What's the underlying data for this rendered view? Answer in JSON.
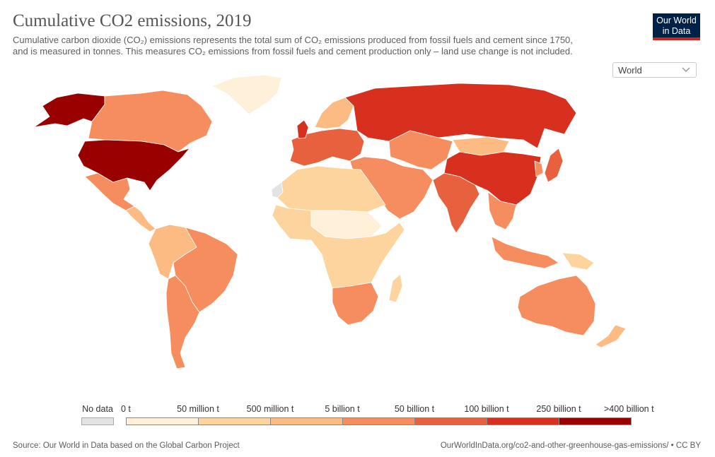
{
  "header": {
    "title": "Cumulative CO2 emissions, 2019",
    "subtitle_line1": "Cumulative carbon dioxide (CO₂) emissions represents the total sum of CO₂ emissions produced from fossil fuels and cement since 1750,",
    "subtitle_line2": "and is measured in tonnes. This measures CO₂ emissions from fossil fuels and cement production only – land use change is not included."
  },
  "logo": {
    "line1": "Our World",
    "line2": "in Data"
  },
  "region_selector": {
    "value": "World",
    "icon": "chevron-down-icon"
  },
  "legend": {
    "no_data_label": "No data",
    "no_data_color": "#e3e3e3",
    "bins": [
      {
        "label": "0 t",
        "color": "#fef0d9"
      },
      {
        "label": "50 million t",
        "color": "#fdd49e"
      },
      {
        "label": "500 million t",
        "color": "#fdbb84"
      },
      {
        "label": "5 billion t",
        "color": "#f58d5e"
      },
      {
        "label": "50 billion t",
        "color": "#e8613f"
      },
      {
        "label": "100 billion t",
        "color": "#d7301f"
      },
      {
        "label": "250 billion t",
        "color": "#990000"
      }
    ],
    "last_label": ">400 billion t"
  },
  "footer": {
    "source": "Source: Our World in Data based on the Global Carbon Project",
    "url": "OurWorldInData.org/co2-and-other-greenhouse-gas-emissions/ • CC BY"
  },
  "regions": [
    {
      "name": "alaska",
      "bin": 6
    },
    {
      "name": "canada",
      "bin": 3
    },
    {
      "name": "greenland",
      "bin": 0
    },
    {
      "name": "united-states",
      "bin": 6
    },
    {
      "name": "mexico",
      "bin": 3
    },
    {
      "name": "central-america",
      "bin": 2
    },
    {
      "name": "northern-south-america",
      "bin": 2
    },
    {
      "name": "brazil",
      "bin": 3
    },
    {
      "name": "southern-cone",
      "bin": 3
    },
    {
      "name": "western-europe",
      "bin": 4
    },
    {
      "name": "united-kingdom",
      "bin": 5
    },
    {
      "name": "scandinavia",
      "bin": 2
    },
    {
      "name": "russia",
      "bin": 5
    },
    {
      "name": "middle-east",
      "bin": 3
    },
    {
      "name": "north-africa",
      "bin": 1
    },
    {
      "name": "sahel",
      "bin": 0
    },
    {
      "name": "central-africa",
      "bin": 1
    },
    {
      "name": "southern-africa",
      "bin": 3
    },
    {
      "name": "madagascar",
      "bin": 1
    },
    {
      "name": "central-asia",
      "bin": 3
    },
    {
      "name": "mongolia",
      "bin": 2
    },
    {
      "name": "india",
      "bin": 4
    },
    {
      "name": "china",
      "bin": 5
    },
    {
      "name": "japan",
      "bin": 4
    },
    {
      "name": "korea",
      "bin": 3
    },
    {
      "name": "southeast-asia",
      "bin": 3
    },
    {
      "name": "indonesia",
      "bin": 3
    },
    {
      "name": "papua-new-guinea",
      "bin": 1
    },
    {
      "name": "australia",
      "bin": 3
    },
    {
      "name": "new-zealand",
      "bin": 2
    },
    {
      "name": "western-sahara",
      "bin": -1
    }
  ]
}
